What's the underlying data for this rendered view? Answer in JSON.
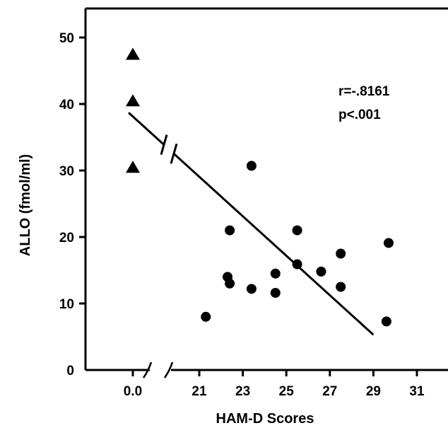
{
  "chart_data": {
    "type": "scatter",
    "xlabel": "HAM-D Scores",
    "ylabel": "ALLO (fmol/ml)",
    "ylim": [
      0,
      55
    ],
    "yticks": [
      0,
      10,
      20,
      30,
      40,
      50
    ],
    "x_axis": {
      "broken": true,
      "control_tick_label": "0.0",
      "xlim": [
        20,
        32
      ],
      "xticks": [
        21,
        23,
        25,
        27,
        29,
        31
      ]
    },
    "annotations": [
      "r=-.8161",
      "p<.001"
    ],
    "series": [
      {
        "marker": "triangle",
        "group_x": "0.0",
        "values": [
          47.5,
          40.5,
          30.5
        ]
      },
      {
        "marker": "circle",
        "points": [
          {
            "x": 21.3,
            "y": 8.0
          },
          {
            "x": 22.3,
            "y": 14.0
          },
          {
            "x": 22.4,
            "y": 13.0
          },
          {
            "x": 22.4,
            "y": 21.0
          },
          {
            "x": 23.4,
            "y": 30.7
          },
          {
            "x": 23.4,
            "y": 12.2
          },
          {
            "x": 24.5,
            "y": 14.5
          },
          {
            "x": 24.5,
            "y": 11.6
          },
          {
            "x": 25.5,
            "y": 21.0
          },
          {
            "x": 25.5,
            "y": 15.9
          },
          {
            "x": 26.6,
            "y": 14.8
          },
          {
            "x": 27.5,
            "y": 17.5
          },
          {
            "x": 27.5,
            "y": 12.5
          },
          {
            "x": 29.6,
            "y": 7.3
          },
          {
            "x": 29.7,
            "y": 19.1
          }
        ]
      }
    ],
    "regression_line": {
      "x_start": "0.0",
      "y_start": 38.7,
      "x_end": 29.0,
      "y_end": 5.3
    },
    "colors": {
      "marks": "#000000",
      "background": "#ffffff"
    }
  }
}
